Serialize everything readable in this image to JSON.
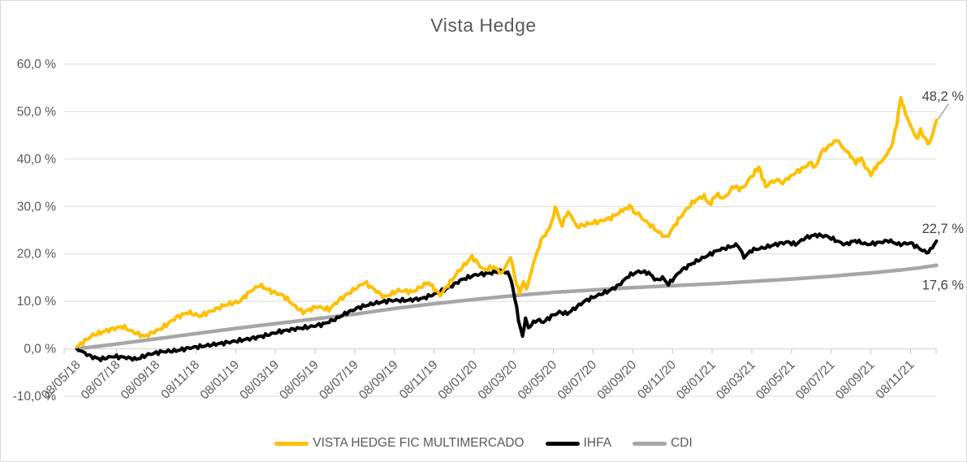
{
  "styles": {
    "background": "#FFFFFF",
    "border_color": "#D9D9D9",
    "text_color": "#595959",
    "grid_color": "#D9D9D9",
    "tick_color": "#C6C6C6",
    "end_label_color": "#404040",
    "leader_line_color": "#A6A6A6"
  },
  "chart_data": {
    "type": "line",
    "title": "Vista Hedge",
    "xlabel": "",
    "ylabel": "",
    "grid": "horizontal",
    "legend_position": "bottom",
    "y_axis": {
      "min": -10,
      "max": 60,
      "step": 10,
      "tick_labels": [
        "60,0 %",
        "50,0 %",
        "40,0 %",
        "30,0 %",
        "20,0 %",
        "10,0 %",
        "0,0 %",
        "-10,0 %"
      ]
    },
    "x_axis": {
      "unit": "months since 08/05/18",
      "tick_months": [
        0,
        2,
        4,
        6,
        8,
        10,
        12,
        14,
        16,
        18,
        20,
        22,
        24,
        26,
        28,
        30,
        32,
        34,
        36,
        38,
        40,
        42
      ],
      "tick_labels": [
        "08/05/18",
        "08/07/18",
        "08/09/18",
        "08/11/18",
        "08/01/19",
        "08/03/19",
        "08/05/19",
        "08/07/19",
        "08/09/19",
        "08/11/19",
        "08/01/20",
        "08/03/20",
        "08/05/20",
        "08/07/20",
        "08/09/20",
        "08/11/20",
        "08/01/21",
        "08/03/21",
        "08/05/21",
        "08/07/21",
        "08/09/21",
        "08/11/21"
      ]
    },
    "series": [
      {
        "name": "VISTA HEDGE FIC MULTIMERCADO",
        "color": "#FFC000",
        "line_width": 4,
        "noise": 0.5,
        "end_label": "48,2 %",
        "end_value": 48.2,
        "leader_line": true,
        "label_offset_y": -24,
        "points": [
          [
            0,
            0.4
          ],
          [
            0.8,
            2.9
          ],
          [
            1.8,
            4.2
          ],
          [
            2.3,
            4.7
          ],
          [
            2.8,
            3.6
          ],
          [
            3.4,
            2.6
          ],
          [
            4.3,
            4.4
          ],
          [
            5,
            6.6
          ],
          [
            5.6,
            7.7
          ],
          [
            6.2,
            6.9
          ],
          [
            6.8,
            8
          ],
          [
            7.5,
            9.3
          ],
          [
            8.2,
            10
          ],
          [
            8.7,
            12
          ],
          [
            9.2,
            13.4
          ],
          [
            9.8,
            12.1
          ],
          [
            10.4,
            11.2
          ],
          [
            11,
            8.9
          ],
          [
            11.4,
            7.7
          ],
          [
            12.1,
            8.9
          ],
          [
            12.7,
            8.3
          ],
          [
            13.3,
            10.6
          ],
          [
            14,
            12.6
          ],
          [
            14.5,
            14
          ],
          [
            15.5,
            10.9
          ],
          [
            16.2,
            12.3
          ],
          [
            16.9,
            12
          ],
          [
            17.7,
            14
          ],
          [
            18.3,
            11.3
          ],
          [
            19.2,
            16.2
          ],
          [
            19.9,
            19.4
          ],
          [
            20.5,
            16.6
          ],
          [
            21,
            17.3
          ],
          [
            21.4,
            15.9
          ],
          [
            21.85,
            19.3
          ],
          [
            22.15,
            13.5
          ],
          [
            22.3,
            11.8
          ],
          [
            22.5,
            14
          ],
          [
            22.65,
            12.5
          ],
          [
            23,
            18
          ],
          [
            23.4,
            23
          ],
          [
            23.8,
            25.3
          ],
          [
            24.1,
            29.4
          ],
          [
            24.45,
            26.3
          ],
          [
            24.75,
            29
          ],
          [
            25.2,
            25.7
          ],
          [
            25.7,
            26.3
          ],
          [
            26.3,
            26.8
          ],
          [
            26.9,
            27.6
          ],
          [
            27.5,
            29.2
          ],
          [
            27.85,
            29.9
          ],
          [
            28.4,
            27.8
          ],
          [
            28.9,
            26
          ],
          [
            29.3,
            24.6
          ],
          [
            29.7,
            23.4
          ],
          [
            30.2,
            26.6
          ],
          [
            30.7,
            29.4
          ],
          [
            31.1,
            31.1
          ],
          [
            31.6,
            32.3
          ],
          [
            31.85,
            30.3
          ],
          [
            32.2,
            32.5
          ],
          [
            32.6,
            31.7
          ],
          [
            33.1,
            34.3
          ],
          [
            33.45,
            33.6
          ],
          [
            33.9,
            35.8
          ],
          [
            34.35,
            38.3
          ],
          [
            34.7,
            34.2
          ],
          [
            35.1,
            35.5
          ],
          [
            35.55,
            35.1
          ],
          [
            36.3,
            37.4
          ],
          [
            36.7,
            38.4
          ],
          [
            37,
            39.3
          ],
          [
            37.2,
            38
          ],
          [
            37.5,
            41.5
          ],
          [
            37.9,
            42.7
          ],
          [
            38.25,
            44
          ],
          [
            38.8,
            41.5
          ],
          [
            39.05,
            40.3
          ],
          [
            39.25,
            39.2
          ],
          [
            39.5,
            40.2
          ],
          [
            39.8,
            37.8
          ],
          [
            40,
            36.8
          ],
          [
            40.35,
            38.9
          ],
          [
            40.8,
            40.8
          ],
          [
            41.1,
            43.5
          ],
          [
            41.3,
            47.5
          ],
          [
            41.5,
            52.9
          ],
          [
            41.75,
            49.5
          ],
          [
            41.95,
            47.6
          ],
          [
            42.2,
            45
          ],
          [
            42.35,
            44.2
          ],
          [
            42.5,
            45.9
          ],
          [
            42.7,
            44.6
          ],
          [
            42.95,
            43
          ],
          [
            43.1,
            45
          ],
          [
            43.3,
            48.2
          ]
        ]
      },
      {
        "name": "IHFA",
        "color": "#000000",
        "line_width": 4,
        "noise": 0.42,
        "end_label": "22,7 %",
        "end_value": 22.7,
        "leader_line": false,
        "label_offset_y": -10,
        "points": [
          [
            0,
            0
          ],
          [
            0.7,
            -1.6
          ],
          [
            1.2,
            -2.2
          ],
          [
            1.8,
            -1.6
          ],
          [
            2.4,
            -1.8
          ],
          [
            3,
            -2.2
          ],
          [
            3.6,
            -1.2
          ],
          [
            4.3,
            -0.6
          ],
          [
            5,
            -0.4
          ],
          [
            5.7,
            0.2
          ],
          [
            6.4,
            0.6
          ],
          [
            7.2,
            1.1
          ],
          [
            8,
            1.6
          ],
          [
            8.8,
            2.2
          ],
          [
            9.5,
            2.8
          ],
          [
            10.2,
            3.6
          ],
          [
            11,
            4.2
          ],
          [
            11.7,
            4.6
          ],
          [
            12.4,
            5.2
          ],
          [
            13,
            6.2
          ],
          [
            13.6,
            7.6
          ],
          [
            14.2,
            8.7
          ],
          [
            15,
            9.6
          ],
          [
            15.8,
            10.2
          ],
          [
            16.6,
            10.2
          ],
          [
            17.4,
            10.6
          ],
          [
            18,
            11.5
          ],
          [
            18.7,
            12.8
          ],
          [
            19.4,
            14.6
          ],
          [
            20.1,
            15.6
          ],
          [
            20.9,
            16
          ],
          [
            21.4,
            16.5
          ],
          [
            21.8,
            15.6
          ],
          [
            22.05,
            11
          ],
          [
            22.25,
            6
          ],
          [
            22.45,
            2.6
          ],
          [
            22.6,
            6.2
          ],
          [
            22.75,
            4.4
          ],
          [
            23,
            5.5
          ],
          [
            23.2,
            6.1
          ],
          [
            23.5,
            5.6
          ],
          [
            23.9,
            6.9
          ],
          [
            24.3,
            7.7
          ],
          [
            24.7,
            7.4
          ],
          [
            25.1,
            8.6
          ],
          [
            25.6,
            10.1
          ],
          [
            26.2,
            11.2
          ],
          [
            26.8,
            12.2
          ],
          [
            27.3,
            13.4
          ],
          [
            27.8,
            15.4
          ],
          [
            28.3,
            16.3
          ],
          [
            28.8,
            16
          ],
          [
            29.2,
            14.4
          ],
          [
            29.5,
            15
          ],
          [
            29.8,
            13.6
          ],
          [
            30.4,
            16.4
          ],
          [
            31,
            18
          ],
          [
            31.7,
            19.5
          ],
          [
            32.3,
            20.8
          ],
          [
            33,
            21.6
          ],
          [
            33.3,
            21.9
          ],
          [
            33.6,
            19.3
          ],
          [
            34,
            20.8
          ],
          [
            34.6,
            21.3
          ],
          [
            35.2,
            22
          ],
          [
            35.8,
            22.5
          ],
          [
            36.2,
            22
          ],
          [
            36.7,
            23.4
          ],
          [
            37.2,
            24
          ],
          [
            37.8,
            23.7
          ],
          [
            38.4,
            22.5
          ],
          [
            38.7,
            22
          ],
          [
            39.2,
            22.8
          ],
          [
            39.8,
            22
          ],
          [
            40.3,
            22.3
          ],
          [
            40.9,
            22.8
          ],
          [
            41.4,
            22
          ],
          [
            42,
            22.3
          ],
          [
            42.5,
            21
          ],
          [
            42.8,
            20.3
          ],
          [
            43,
            20.8
          ],
          [
            43.3,
            22.7
          ]
        ]
      },
      {
        "name": "CDI",
        "color": "#A6A6A6",
        "line_width": 4.5,
        "noise": 0,
        "end_label": "17,6 %",
        "end_value": 17.6,
        "leader_line": false,
        "label_offset_y": 30,
        "points": [
          [
            0,
            0
          ],
          [
            2,
            1
          ],
          [
            4,
            2.1
          ],
          [
            6,
            3.2
          ],
          [
            8,
            4.3
          ],
          [
            10,
            5.3
          ],
          [
            12,
            6.3
          ],
          [
            14,
            7.3
          ],
          [
            16,
            8.5
          ],
          [
            18,
            9.5
          ],
          [
            20,
            10.4
          ],
          [
            22,
            11.2
          ],
          [
            24,
            11.9
          ],
          [
            26,
            12.4
          ],
          [
            28,
            12.9
          ],
          [
            30,
            13.3
          ],
          [
            32,
            13.7
          ],
          [
            34,
            14.2
          ],
          [
            36,
            14.7
          ],
          [
            38,
            15.3
          ],
          [
            40,
            16
          ],
          [
            41.5,
            16.6
          ],
          [
            42.5,
            17.1
          ],
          [
            43.3,
            17.6
          ]
        ]
      }
    ]
  }
}
